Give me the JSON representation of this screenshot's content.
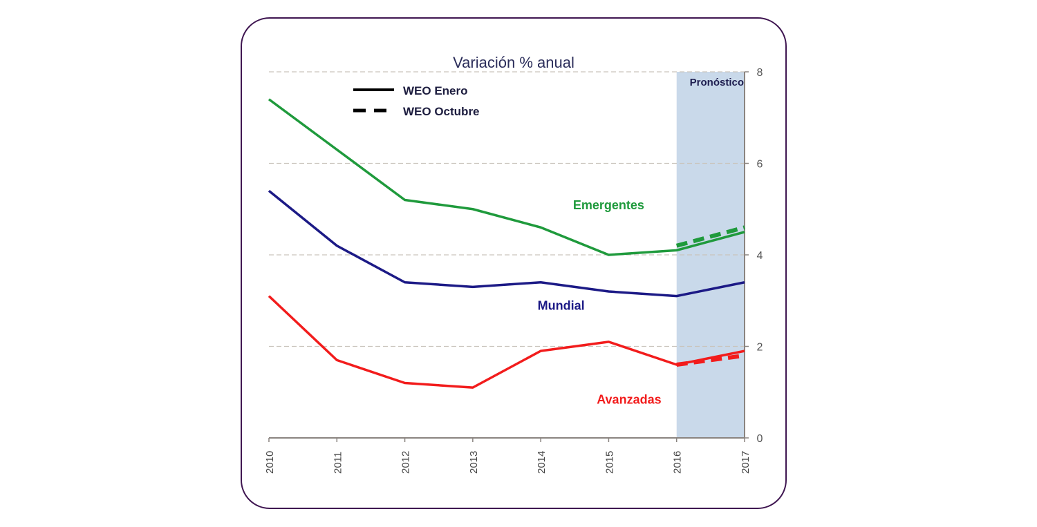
{
  "chart_data": {
    "type": "line",
    "title": "Variación % anual",
    "xlabel": "",
    "ylabel": "",
    "x": [
      "2010",
      "2011",
      "2012",
      "2013",
      "2014",
      "2015",
      "2016",
      "2017"
    ],
    "ylim": [
      0,
      8
    ],
    "yticks": [
      "0",
      "2",
      "4",
      "6",
      "8"
    ],
    "y_axis_side": "right",
    "grid": true,
    "forecast_region": {
      "label": "Pronóstico",
      "from": "2016",
      "to": "2017",
      "color": "#c9d9ea"
    },
    "legend": {
      "placement": "top-left",
      "entries": [
        {
          "label": "WEO Enero",
          "style": "solid"
        },
        {
          "label": "WEO Octubre",
          "style": "dashed"
        }
      ]
    },
    "series": [
      {
        "name": "Emergentes",
        "color": "#1f9a3c",
        "style": "solid",
        "values": [
          7.4,
          6.3,
          5.2,
          5.0,
          4.6,
          4.0,
          4.1,
          4.5
        ]
      },
      {
        "name": "Emergentes (WEO Octubre)",
        "color": "#1f9a3c",
        "style": "dashed",
        "x": [
          "2016",
          "2017"
        ],
        "values": [
          4.2,
          4.6
        ]
      },
      {
        "name": "Mundial",
        "color": "#1c1a86",
        "style": "solid",
        "values": [
          5.4,
          4.2,
          3.4,
          3.3,
          3.4,
          3.2,
          3.1,
          3.4
        ]
      },
      {
        "name": "Avanzadas",
        "color": "#f21c1c",
        "style": "solid",
        "values": [
          3.1,
          1.7,
          1.2,
          1.1,
          1.9,
          2.1,
          1.6,
          1.9
        ]
      },
      {
        "name": "Avanzadas (WEO Octubre)",
        "color": "#f21c1c",
        "style": "dashed",
        "x": [
          "2016",
          "2017"
        ],
        "values": [
          1.6,
          1.8
        ]
      }
    ],
    "annotations": [
      {
        "text": "Emergentes",
        "color": "#1f9a3c",
        "at_x": "2015",
        "at_y": 5.0
      },
      {
        "text": "Mundial",
        "color": "#1c1a86",
        "at_x": "2014.3",
        "at_y": 2.8
      },
      {
        "text": "Avanzadas",
        "color": "#f21c1c",
        "at_x": "2015.3",
        "at_y": 0.75
      }
    ]
  }
}
